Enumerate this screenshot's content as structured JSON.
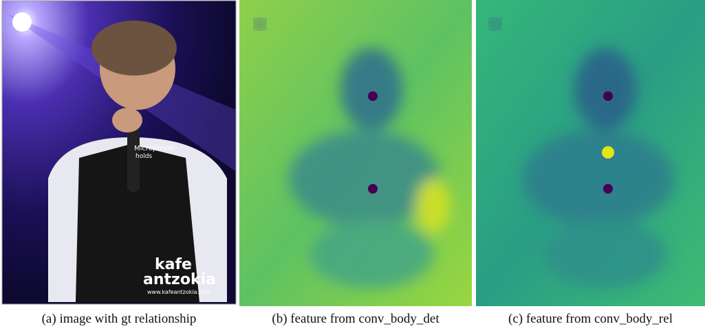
{
  "figure": {
    "panels": [
      {
        "caption": "(a) image with gt relationship",
        "labels": {
          "object": "Microphone",
          "predicate": "holds"
        },
        "watermark": {
          "line1": "kafe",
          "line2": "antzokia",
          "url": "www.kafeantzokia.com"
        }
      },
      {
        "caption": "(b) feature from conv_body_det"
      },
      {
        "caption": "(c) feature from conv_body_rel"
      }
    ]
  }
}
